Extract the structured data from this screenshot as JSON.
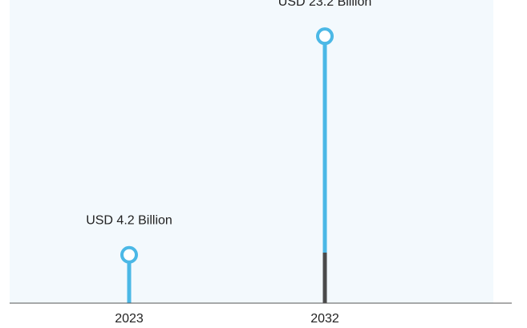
{
  "chart_data": {
    "type": "lollipop",
    "categories": [
      "2023",
      "2032"
    ],
    "values": [
      4.2,
      23.2
    ],
    "value_labels": [
      "USD 4.2 Billion",
      "USD 23.2 Billion"
    ],
    "title": "",
    "xlabel": "",
    "ylabel": "",
    "ylim": [
      0,
      26
    ],
    "grid": false,
    "legend": "none",
    "colors": {
      "background_panel": "#f3f9fd",
      "stem": "#4bb8e6",
      "base_stem": "#4a4a4a",
      "axis": "#555555",
      "text": "#222222"
    }
  }
}
